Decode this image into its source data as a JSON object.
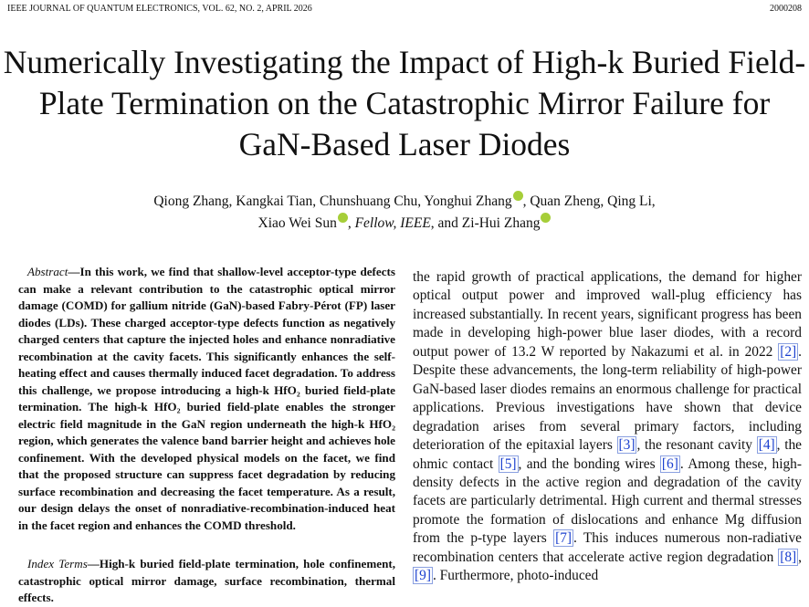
{
  "header": {
    "journal": "IEEE JOURNAL OF QUANTUM ELECTRONICS, VOL. 62, NO. 2, APRIL 2026",
    "page_id": "2000208"
  },
  "title": "Numerically Investigating the Impact of High-k Buried Field-Plate Termination on the Catastrophic Mirror Failure for GaN-Based Laser Diodes",
  "authors": {
    "line1": [
      "Qiong Zhang, Kangkai Tian, Chunshuang Chu, Yonghui Zhang",
      ", Quan Zheng, Qing Li,"
    ],
    "line2": {
      "name1": "Xiao Wei Sun",
      "sep": ", ",
      "grade": "Fellow, IEEE",
      "name2": ", and Zi-Hui Zhang"
    }
  },
  "abstract": {
    "label": "Abstract",
    "text": "—In this work, we find that shallow-level acceptor-type defects can make a relevant contribution to the catastrophic optical mirror damage (COMD) for gallium nitride (GaN)-based Fabry-Pérot (FP) laser diodes (LDs). These charged acceptor-type defects function as negatively charged centers that capture the injected holes and enhance nonradiative recombination at the cavity facets. This significantly enhances the self-heating effect and causes thermally induced facet degradation. To address this challenge, we propose introducing a high-k HfO₂ buried field-plate termination. The high-k HfO₂ buried field-plate enables the stronger electric field magnitude in the GaN region underneath the high-k HfO₂ region, which generates the valence band barrier height and achieves hole confinement. With the developed physical models on the facet, we find that the proposed structure can suppress facet degradation by reducing surface recombination and decreasing the facet temperature. As a result, our design delays the onset of nonradiative-recombination-induced heat in the facet region and enhances the COMD threshold."
  },
  "index_terms": {
    "label": "Index Terms",
    "text": "—High-k buried field-plate termination, hole confinement, catastrophic optical mirror damage, surface recombination, thermal effects."
  },
  "body": [
    "the rapid growth of practical applications, the demand for higher optical output power and improved wall-plug efficiency has increased substantially. In recent years, significant progress has been made in developing high-power blue laser diodes, with a record output power of 13.2 W reported by Nakazumi et al. in 2022 ",
    "[2]",
    ". Despite these advancements, the long-term reliability of high-power GaN-based laser diodes remains an enormous challenge for practical applications. Previous investigations have shown that device degradation arises from several primary factors, including deterioration of the epitaxial layers ",
    "[3]",
    ", the resonant cavity ",
    "[4]",
    ", the ohmic contact ",
    "[5]",
    ", and the bonding wires ",
    "[6]",
    ". Among these, high-density defects in the active region and degradation of the cavity facets are particularly detrimental. High current and thermal stresses promote the formation of dislocations and enhance Mg diffusion from the p-type layers ",
    "[7]",
    ". This induces numerous non-radiative recombination centers that accelerate active region degradation ",
    "[8]",
    ", ",
    "[9]",
    ". Furthermore, photo-induced"
  ]
}
